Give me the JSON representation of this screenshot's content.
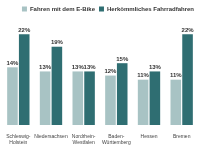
{
  "chart_data": {
    "type": "bar",
    "categories": [
      "Schleswig-Holstein",
      "Niedersachsen",
      "Nordrhein-Westfalen",
      "Baden-Württemberg",
      "Hessen",
      "Bremen"
    ],
    "series": [
      {
        "name": "Fahren mit dem E-Bike",
        "color": "#a8c3c4",
        "values": [
          14,
          13,
          13,
          12,
          11,
          11
        ],
        "value_labels": [
          "14%",
          "13%",
          "13%",
          "12%",
          "11%",
          "11%"
        ]
      },
      {
        "name": "Herkömmliches Fahrradfahren",
        "color": "#2f6e72",
        "values": [
          22,
          19,
          13,
          15,
          13,
          22
        ],
        "value_labels": [
          "22%",
          "19%",
          "13%",
          "15%",
          "13%",
          "22%"
        ]
      }
    ],
    "ylim": [
      0,
      25
    ],
    "grid": false,
    "legend": "top-right",
    "data_labels": true,
    "tick_labels": "x"
  }
}
